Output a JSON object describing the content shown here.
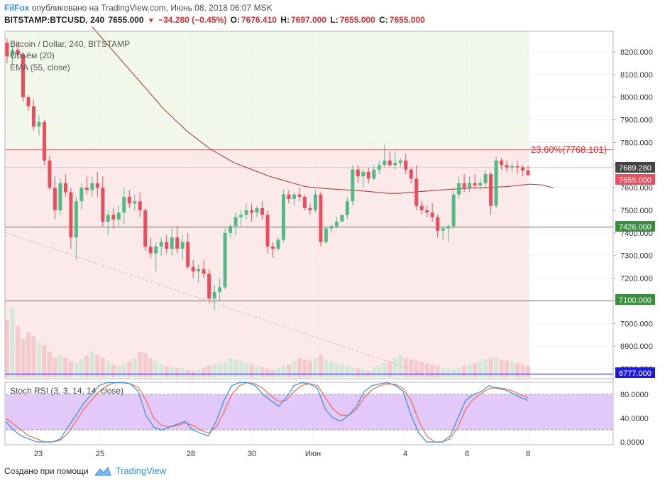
{
  "header": {
    "brand": "FilFox",
    "published": "опубликовано на TradingView.com, Июнь 08, 2018 06:07 MSK",
    "symbol": "BITSTAMP:BTCUSD, 240",
    "last": "7655.000",
    "change": "−34.280 (−0.45%)",
    "o_label": "O:",
    "o_value": "7676.410",
    "h_label": "H:",
    "h_value": "7697.000",
    "l_label": "L:",
    "l_value": "7655.000",
    "c_label": "C:",
    "c_value": "7655.000"
  },
  "legend": {
    "title": "Bitcoin / Dollar, 240, BITSTAMP",
    "volume": "Объём (20)",
    "ema": "EMA (55, close)",
    "stoch": "Stoch RSI (3, 3, 14, 14, close)"
  },
  "fib_label": "23.60%(7768.101)",
  "price_badges": {
    "b1": "7689.280",
    "b2": "7655.000",
    "b3": "7426.000",
    "b4": "7100.000",
    "b5": "6777.000"
  },
  "footer": {
    "created": "Создано при помощи",
    "brand": "TradingView"
  },
  "colors": {
    "up": "#53b987",
    "down": "#eb4d5c",
    "ema": "#a0322a",
    "fib": "#e57373",
    "support": "#388e3c",
    "blue_level": "#1a1ae6",
    "stoch_k": "#2f8ee6",
    "stoch_d": "#f06b4a",
    "stoch_band": "#e3c8fa"
  },
  "chart_data": [
    {
      "type": "candlestick",
      "title": "Bitcoin / Dollar, 240, BITSTAMP",
      "y_axis_ticks": [
        "8200.000",
        "8100.000",
        "8000.000",
        "7900.000",
        "7800.000",
        "7700.000",
        "7600.000",
        "7500.000",
        "7400.000",
        "7300.000",
        "7200.000",
        "7100.000",
        "7000.000",
        "6900.000",
        "6800.000"
      ],
      "ylim": [
        6745,
        8290
      ],
      "x_ticks": [
        "23",
        "25",
        "28",
        "30",
        "Июн",
        "4",
        "6",
        "8"
      ],
      "levels": {
        "fib_23_6": 7768.101,
        "resistance": 7689.28,
        "last": 7655,
        "support_1": 7426,
        "support_2": 7100,
        "support_3": 6777
      },
      "ohlc": [
        [
          8240,
          8260,
          8150,
          8180
        ],
        [
          8180,
          8230,
          8140,
          8210
        ],
        [
          8210,
          8240,
          8170,
          8190
        ],
        [
          8190,
          8200,
          7980,
          8000
        ],
        [
          8000,
          8010,
          7940,
          7960
        ],
        [
          7960,
          7990,
          7850,
          7870
        ],
        [
          7870,
          7920,
          7830,
          7890
        ],
        [
          7890,
          7900,
          7700,
          7720
        ],
        [
          7720,
          7740,
          7590,
          7600
        ],
        [
          7600,
          7650,
          7460,
          7500
        ],
        [
          7500,
          7640,
          7480,
          7620
        ],
        [
          7620,
          7660,
          7560,
          7580
        ],
        [
          7580,
          7600,
          7330,
          7380
        ],
        [
          7380,
          7560,
          7280,
          7540
        ],
        [
          7540,
          7620,
          7500,
          7600
        ],
        [
          7600,
          7650,
          7570,
          7590
        ],
        [
          7590,
          7650,
          7560,
          7620
        ],
        [
          7620,
          7670,
          7560,
          7600
        ],
        [
          7600,
          7650,
          7430,
          7450
        ],
        [
          7450,
          7500,
          7390,
          7480
        ],
        [
          7480,
          7510,
          7420,
          7460
        ],
        [
          7460,
          7520,
          7430,
          7490
        ],
        [
          7490,
          7600,
          7440,
          7560
        ],
        [
          7560,
          7590,
          7510,
          7530
        ],
        [
          7530,
          7570,
          7500,
          7540
        ],
        [
          7540,
          7580,
          7470,
          7500
        ],
        [
          7500,
          7510,
          7320,
          7340
        ],
        [
          7340,
          7380,
          7290,
          7310
        ],
        [
          7310,
          7360,
          7230,
          7340
        ],
        [
          7340,
          7380,
          7300,
          7360
        ],
        [
          7360,
          7390,
          7310,
          7330
        ],
        [
          7330,
          7420,
          7300,
          7380
        ],
        [
          7380,
          7430,
          7310,
          7330
        ],
        [
          7330,
          7390,
          7280,
          7360
        ],
        [
          7360,
          7400,
          7240,
          7250
        ],
        [
          7250,
          7280,
          7200,
          7230
        ],
        [
          7230,
          7260,
          7180,
          7240
        ],
        [
          7240,
          7280,
          7200,
          7220
        ],
        [
          7220,
          7240,
          7090,
          7110
        ],
        [
          7110,
          7170,
          7060,
          7140
        ],
        [
          7140,
          7200,
          7100,
          7160
        ],
        [
          7160,
          7420,
          7150,
          7400
        ],
        [
          7400,
          7440,
          7380,
          7430
        ],
        [
          7430,
          7490,
          7390,
          7470
        ],
        [
          7470,
          7500,
          7430,
          7480
        ],
        [
          7480,
          7530,
          7460,
          7500
        ],
        [
          7500,
          7530,
          7450,
          7490
        ],
        [
          7490,
          7520,
          7470,
          7510
        ],
        [
          7510,
          7540,
          7460,
          7480
        ],
        [
          7480,
          7500,
          7310,
          7340
        ],
        [
          7340,
          7360,
          7290,
          7330
        ],
        [
          7330,
          7380,
          7320,
          7370
        ],
        [
          7370,
          7590,
          7360,
          7570
        ],
        [
          7570,
          7590,
          7530,
          7550
        ],
        [
          7550,
          7580,
          7520,
          7570
        ],
        [
          7570,
          7600,
          7540,
          7560
        ],
        [
          7560,
          7570,
          7500,
          7510
        ],
        [
          7510,
          7530,
          7480,
          7500
        ],
        [
          7500,
          7590,
          7490,
          7570
        ],
        [
          7570,
          7580,
          7340,
          7360
        ],
        [
          7360,
          7430,
          7350,
          7420
        ],
        [
          7420,
          7440,
          7400,
          7430
        ],
        [
          7430,
          7470,
          7420,
          7450
        ],
        [
          7450,
          7480,
          7460,
          7480
        ],
        [
          7480,
          7560,
          7460,
          7540
        ],
        [
          7540,
          7700,
          7520,
          7680
        ],
        [
          7680,
          7700,
          7620,
          7650
        ],
        [
          7650,
          7680,
          7600,
          7670
        ],
        [
          7670,
          7690,
          7620,
          7640
        ],
        [
          7640,
          7700,
          7630,
          7680
        ],
        [
          7680,
          7720,
          7660,
          7700
        ],
        [
          7700,
          7790,
          7690,
          7720
        ],
        [
          7720,
          7760,
          7690,
          7700
        ],
        [
          7700,
          7760,
          7680,
          7710
        ],
        [
          7710,
          7730,
          7690,
          7720
        ],
        [
          7720,
          7750,
          7660,
          7680
        ],
        [
          7680,
          7690,
          7620,
          7640
        ],
        [
          7640,
          7700,
          7500,
          7520
        ],
        [
          7520,
          7540,
          7480,
          7500
        ],
        [
          7500,
          7520,
          7470,
          7490
        ],
        [
          7490,
          7530,
          7450,
          7470
        ],
        [
          7470,
          7480,
          7380,
          7410
        ],
        [
          7410,
          7430,
          7370,
          7420
        ],
        [
          7420,
          7440,
          7360,
          7430
        ],
        [
          7430,
          7590,
          7420,
          7570
        ],
        [
          7570,
          7650,
          7550,
          7620
        ],
        [
          7620,
          7660,
          7580,
          7600
        ],
        [
          7600,
          7650,
          7580,
          7620
        ],
        [
          7620,
          7660,
          7600,
          7610
        ],
        [
          7610,
          7640,
          7590,
          7620
        ],
        [
          7620,
          7680,
          7600,
          7660
        ],
        [
          7660,
          7670,
          7480,
          7520
        ],
        [
          7520,
          7740,
          7510,
          7720
        ],
        [
          7720,
          7730,
          7680,
          7700
        ],
        [
          7700,
          7720,
          7670,
          7690
        ],
        [
          7690,
          7710,
          7670,
          7695
        ],
        [
          7695,
          7720,
          7660,
          7690
        ],
        [
          7690,
          7700,
          7650,
          7676
        ],
        [
          7676,
          7697,
          7655,
          7655
        ]
      ],
      "ema_values": [
        8310,
        8250,
        8190,
        8130,
        8070,
        8010,
        7950,
        7900,
        7850,
        7810,
        7770,
        7740,
        7710,
        7690,
        7670,
        7650,
        7635,
        7620,
        7605,
        7600,
        7595,
        7592,
        7588,
        7585,
        7580,
        7575,
        7575,
        7580,
        7584,
        7588,
        7592,
        7595,
        7598,
        7600,
        7602,
        7605,
        7610,
        7616,
        7612,
        7600
      ],
      "volume": [
        90,
        110,
        80,
        60,
        70,
        65,
        55,
        50,
        40,
        30,
        35,
        30,
        25,
        22,
        28,
        33,
        40,
        35,
        30,
        25,
        20,
        18,
        22,
        25,
        30,
        40,
        38,
        30,
        25,
        20,
        18,
        16,
        15,
        14,
        12,
        10,
        12,
        15,
        18,
        20,
        22,
        24,
        30,
        28,
        26,
        22,
        20,
        18,
        16,
        14,
        12,
        15,
        18,
        20,
        25,
        30,
        28,
        26,
        30,
        35,
        28,
        25,
        22,
        20,
        18,
        16,
        14,
        12,
        10,
        15,
        18,
        22,
        25,
        30,
        35,
        30,
        28,
        26,
        24,
        22,
        20,
        18,
        16,
        14,
        12,
        15,
        18,
        20,
        22,
        25,
        28,
        30,
        32,
        28,
        26,
        24,
        22,
        20,
        18,
        16
      ],
      "stoch_k": [
        35,
        20,
        10,
        5,
        0,
        0,
        0,
        5,
        25,
        45,
        65,
        80,
        95,
        100,
        100,
        100,
        98,
        85,
        45,
        25,
        20,
        25,
        30,
        35,
        20,
        15,
        10,
        35,
        70,
        95,
        100,
        100,
        95,
        80,
        70,
        60,
        75,
        95,
        100,
        98,
        90,
        55,
        40,
        35,
        45,
        60,
        85,
        95,
        98,
        100,
        95,
        85,
        45,
        15,
        0,
        0,
        0,
        10,
        40,
        70,
        80,
        85,
        95,
        90,
        88,
        82,
        75,
        70
      ],
      "stoch_d": [
        40,
        30,
        20,
        10,
        5,
        0,
        0,
        3,
        15,
        35,
        55,
        70,
        85,
        95,
        100,
        100,
        98,
        92,
        70,
        40,
        28,
        25,
        28,
        32,
        28,
        20,
        15,
        25,
        50,
        80,
        95,
        100,
        98,
        90,
        78,
        68,
        70,
        85,
        95,
        98,
        95,
        75,
        55,
        45,
        45,
        55,
        75,
        88,
        95,
        98,
        97,
        90,
        70,
        35,
        10,
        0,
        0,
        5,
        25,
        55,
        72,
        82,
        90,
        92,
        90,
        86,
        80,
        74
      ],
      "stoch_band": [
        20,
        80
      ],
      "stoch_ticks": [
        "80.0000",
        "40.0000",
        "0.0000"
      ]
    }
  ]
}
